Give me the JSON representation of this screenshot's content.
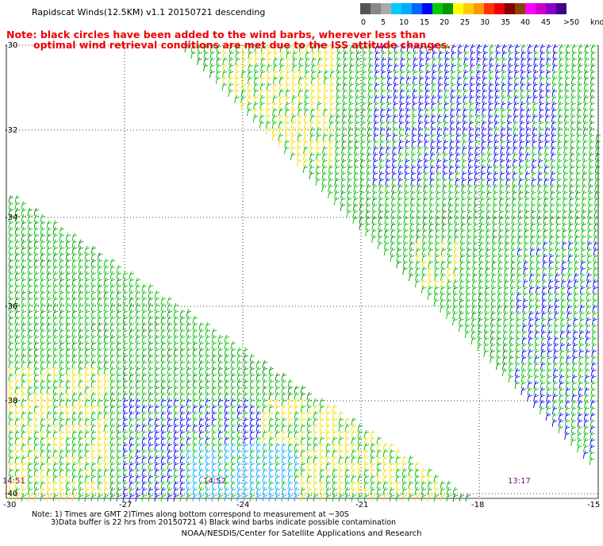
{
  "header": {
    "title": "Rapidscat Winds(12.5KM) v1.1 20150721 descending",
    "note_line1": "Note: black circles have been added to the wind barbs, wherever less than",
    "note_line2": "optimal wind retrieval conditions are met due to the ISS attitude changes."
  },
  "legend": {
    "unit": "knots",
    "colors": [
      "#555555",
      "#888888",
      "#aaaaaa",
      "#00ccff",
      "#00aaff",
      "#0066ff",
      "#0000ff",
      "#00cc00",
      "#009900",
      "#ffff00",
      "#ffcc00",
      "#ff9900",
      "#ff3300",
      "#ee0000",
      "#880000",
      "#884400",
      "#ff00ff",
      "#cc00cc",
      "#8800cc",
      "#440088"
    ],
    "labels": [
      "0",
      "5",
      "10",
      "15",
      "20",
      "25",
      "30",
      "35",
      "40",
      "45",
      ">50"
    ]
  },
  "axes": {
    "lat_labels": [
      "-30",
      "-32",
      "-34",
      "-36",
      "-38",
      "-40"
    ],
    "lon_labels": [
      "-30",
      "-27",
      "-24",
      "-21",
      "-18",
      "-15"
    ]
  },
  "times": [
    "14:51",
    "14:52",
    "13:17"
  ],
  "bottom_notes": {
    "line1": "Note: 1) Times are GMT 2)Times along bottom correspond to measurement at ~30S",
    "line2": "3)Data buffer is 22 hrs from 20150721 4) Black wind barbs indicate possible contamination"
  },
  "footer": "NOAA/NESDIS/Center for Satellite Applications and Research"
}
